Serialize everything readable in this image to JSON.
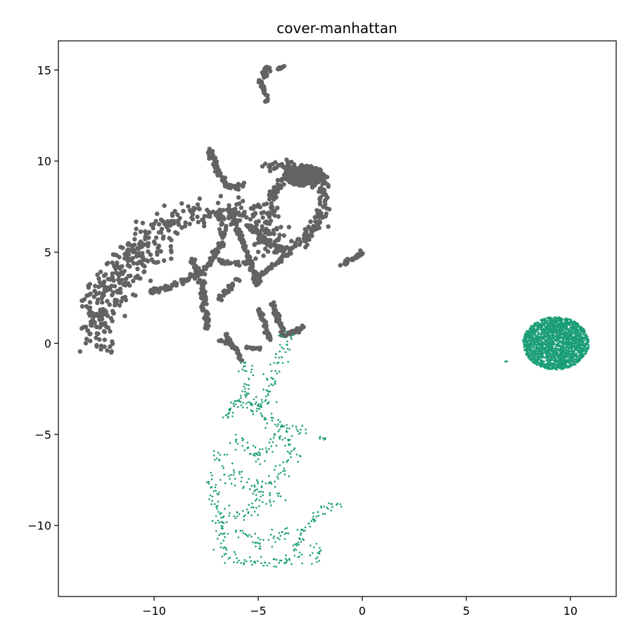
{
  "chart_data": {
    "type": "scatter",
    "title": "cover-manhattan",
    "xlabel": "",
    "ylabel": "",
    "xlim": [
      -14.6,
      12.2
    ],
    "ylim": [
      -13.9,
      16.6
    ],
    "xticks": [
      -10,
      -5,
      0,
      5,
      10
    ],
    "yticks": [
      -10,
      -5,
      0,
      5,
      10,
      15
    ],
    "xtick_labels": [
      "−10",
      "−5",
      "0",
      "5",
      "10"
    ],
    "ytick_labels": [
      "−10",
      "−5",
      "0",
      "5",
      "10",
      "15"
    ],
    "grid": false,
    "legend": "none",
    "series": [
      {
        "color": "#636363",
        "marker_size": "large",
        "clusters": [
          {
            "shape": "arc",
            "points": [
              [
                -12.3,
                -0.3
              ],
              [
                -12.9,
                0.8
              ],
              [
                -12.8,
                2.4
              ],
              [
                -12.2,
                3.8
              ],
              [
                -11.0,
                5.4
              ],
              [
                -9.6,
                6.3
              ],
              [
                -8.2,
                7.0
              ],
              [
                -6.6,
                7.4
              ],
              [
                -5.0,
                7.0
              ],
              [
                -4.2,
                6.0
              ],
              [
                -4.8,
                5.0
              ]
            ],
            "spread": 0.35
          },
          {
            "shape": "arc",
            "points": [
              [
                -12.6,
                0.9
              ],
              [
                -12.0,
                2.6
              ],
              [
                -11.2,
                3.6
              ],
              [
                -10.5,
                4.5
              ],
              [
                -9.6,
                5.5
              ]
            ],
            "spread": 0.45
          },
          {
            "shape": "blob",
            "center": [
              -2.8,
              9.2
            ],
            "radius": [
              1.0,
              0.55
            ],
            "count": 260
          },
          {
            "shape": "arc",
            "points": [
              [
                -4.6,
                9.8
              ],
              [
                -3.2,
                9.6
              ],
              [
                -2.0,
                9.0
              ],
              [
                -1.8,
                7.6
              ],
              [
                -2.3,
                6.3
              ],
              [
                -3.3,
                5.3
              ],
              [
                -4.2,
                5.1
              ]
            ],
            "spread": 0.18
          },
          {
            "shape": "arc",
            "points": [
              [
                -3.7,
                9.2
              ],
              [
                -4.3,
                8.0
              ],
              [
                -4.4,
                7.0
              ]
            ],
            "spread": 0.12
          },
          {
            "shape": "arc",
            "points": [
              [
                -7.3,
                10.6
              ],
              [
                -7.0,
                9.6
              ],
              [
                -6.6,
                8.8
              ],
              [
                -6.2,
                8.5
              ],
              [
                -5.7,
                8.8
              ]
            ],
            "spread": 0.08
          },
          {
            "shape": "arc",
            "points": [
              [
                -6.3,
                7.4
              ],
              [
                -6.0,
                6.3
              ],
              [
                -5.6,
                5.1
              ],
              [
                -5.2,
                4.0
              ],
              [
                -5.0,
                3.2
              ]
            ],
            "spread": 0.08
          },
          {
            "shape": "arc",
            "points": [
              [
                -10.2,
                2.8
              ],
              [
                -8.5,
                3.4
              ],
              [
                -7.4,
                4.2
              ],
              [
                -6.9,
                5.2
              ],
              [
                -6.7,
                6.2
              ],
              [
                -6.9,
                7.2
              ]
            ],
            "spread": 0.08
          },
          {
            "shape": "arc",
            "points": [
              [
                -8.2,
                4.6
              ],
              [
                -7.7,
                3.3
              ],
              [
                -7.6,
                2.0
              ],
              [
                -7.4,
                0.9
              ]
            ],
            "spread": 0.08
          },
          {
            "shape": "arc",
            "points": [
              [
                -6.9,
                2.4
              ],
              [
                -6.4,
                3.0
              ],
              [
                -6.0,
                3.5
              ]
            ],
            "spread": 0.06
          },
          {
            "shape": "arc",
            "points": [
              [
                -6.9,
                4.5
              ],
              [
                -6.0,
                4.4
              ],
              [
                -5.2,
                4.4
              ]
            ],
            "spread": 0.06
          },
          {
            "shape": "arc",
            "points": [
              [
                -5.1,
                3.6
              ],
              [
                -4.6,
                4.0
              ],
              [
                -3.9,
                4.6
              ],
              [
                -3.5,
                5.0
              ]
            ],
            "spread": 0.06
          },
          {
            "shape": "arc",
            "points": [
              [
                -5.7,
                6.6
              ],
              [
                -5.0,
                6.0
              ],
              [
                -4.5,
                5.4
              ],
              [
                -3.9,
                5.2
              ]
            ],
            "spread": 0.06
          },
          {
            "shape": "arc",
            "points": [
              [
                -4.3,
                2.2
              ],
              [
                -4.0,
                1.2
              ],
              [
                -3.7,
                0.4
              ],
              [
                -3.1,
                0.7
              ],
              [
                -2.8,
                0.9
              ]
            ],
            "spread": 0.06
          },
          {
            "shape": "arc",
            "points": [
              [
                -5.0,
                1.9
              ],
              [
                -4.7,
                1.0
              ],
              [
                -4.4,
                0.2
              ]
            ],
            "spread": 0.05
          },
          {
            "shape": "arc",
            "points": [
              [
                -6.6,
                0.6
              ],
              [
                -6.4,
                0.1
              ],
              [
                -6.0,
                -0.4
              ],
              [
                -5.8,
                -0.9
              ]
            ],
            "spread": 0.05
          },
          {
            "shape": "arc",
            "points": [
              [
                -6.8,
                0.1
              ],
              [
                -6.3,
                0.0
              ]
            ],
            "spread": 0.04
          },
          {
            "shape": "arc",
            "points": [
              [
                -5.6,
                -0.2
              ],
              [
                -4.9,
                -0.3
              ]
            ],
            "spread": 0.04
          },
          {
            "shape": "arc",
            "points": [
              [
                -1.0,
                4.3
              ],
              [
                -0.5,
                4.6
              ],
              [
                0.0,
                5.0
              ]
            ],
            "spread": 0.05
          },
          {
            "shape": "arc",
            "points": [
              [
                -5.0,
                14.3
              ],
              [
                -4.6,
                14.8
              ],
              [
                -4.6,
                15.3
              ]
            ],
            "spread": 0.1
          },
          {
            "shape": "arc",
            "points": [
              [
                -4.8,
                14.2
              ],
              [
                -4.6,
                13.6
              ],
              [
                -4.6,
                13.3
              ]
            ],
            "spread": 0.05
          },
          {
            "shape": "arc",
            "points": [
              [
                -4.1,
                15.0
              ],
              [
                -3.8,
                15.2
              ]
            ],
            "spread": 0.03
          }
        ]
      },
      {
        "color": "#1b9e77",
        "marker_size": "small",
        "clusters": [
          {
            "shape": "blob",
            "center": [
              9.3,
              0.0
            ],
            "radius": [
              1.6,
              1.45
            ],
            "count": 2600
          },
          {
            "shape": "arc",
            "points": [
              [
                6.9,
                -1.0
              ],
              [
                6.95,
                -1.02
              ]
            ],
            "spread": 0.02
          },
          {
            "shape": "arc",
            "points": [
              [
                -5.6,
                -1.0
              ],
              [
                -5.5,
                -2.2
              ],
              [
                -5.6,
                -3.1
              ],
              [
                -4.8,
                -3.5
              ],
              [
                -4.4,
                -2.3
              ],
              [
                -4.0,
                -0.8
              ],
              [
                -3.6,
                0.2
              ],
              [
                -3.2,
                0.5
              ]
            ],
            "spread": 0.18
          },
          {
            "shape": "arc",
            "points": [
              [
                -6.3,
                -3.6
              ],
              [
                -5.4,
                -3.3
              ],
              [
                -4.9,
                -3.9
              ],
              [
                -4.3,
                -4.1
              ],
              [
                -3.7,
                -4.8
              ],
              [
                -3.2,
                -4.6
              ],
              [
                -2.6,
                -5.0
              ]
            ],
            "spread": 0.22
          },
          {
            "shape": "arc",
            "points": [
              [
                -6.4,
                -5.2
              ],
              [
                -5.5,
                -5.6
              ],
              [
                -5.0,
                -6.3
              ],
              [
                -4.5,
                -5.4
              ],
              [
                -4.0,
                -5.0
              ],
              [
                -3.5,
                -5.6
              ],
              [
                -3.3,
                -6.3
              ]
            ],
            "spread": 0.22
          },
          {
            "shape": "arc",
            "points": [
              [
                -7.2,
                -6.2
              ],
              [
                -6.5,
                -6.7
              ],
              [
                -6.0,
                -7.5
              ],
              [
                -5.3,
                -7.8
              ],
              [
                -4.5,
                -7.8
              ],
              [
                -3.9,
                -7.1
              ],
              [
                -3.5,
                -6.4
              ]
            ],
            "spread": 0.22
          },
          {
            "shape": "arc",
            "points": [
              [
                -7.3,
                -7.2
              ],
              [
                -7.1,
                -8.5
              ],
              [
                -6.6,
                -9.3
              ],
              [
                -5.8,
                -9.5
              ],
              [
                -5.0,
                -8.9
              ],
              [
                -4.7,
                -8.2
              ],
              [
                -4.0,
                -8.8
              ]
            ],
            "spread": 0.22
          },
          {
            "shape": "arc",
            "points": [
              [
                -6.9,
                -9.2
              ],
              [
                -6.8,
                -10.5
              ],
              [
                -6.7,
                -11.4
              ],
              [
                -6.1,
                -11.8
              ],
              [
                -5.3,
                -12.0
              ],
              [
                -4.4,
                -12.0
              ],
              [
                -3.6,
                -11.9
              ],
              [
                -2.8,
                -11.6
              ]
            ],
            "spread": 0.18
          },
          {
            "shape": "arc",
            "points": [
              [
                -5.9,
                -10.2
              ],
              [
                -5.2,
                -10.9
              ],
              [
                -4.6,
                -11.0
              ],
              [
                -4.0,
                -10.6
              ],
              [
                -3.4,
                -10.1
              ]
            ],
            "spread": 0.18
          },
          {
            "shape": "arc",
            "points": [
              [
                -3.2,
                -11.4
              ],
              [
                -2.8,
                -10.3
              ],
              [
                -2.3,
                -9.6
              ],
              [
                -1.7,
                -8.9
              ],
              [
                -1.0,
                -8.8
              ]
            ],
            "spread": 0.1
          },
          {
            "shape": "arc",
            "points": [
              [
                -2.4,
                -11.0
              ],
              [
                -2.1,
                -11.6
              ],
              [
                -2.2,
                -12.0
              ]
            ],
            "spread": 0.1
          },
          {
            "shape": "arc",
            "points": [
              [
                -2.1,
                -5.1
              ],
              [
                -1.6,
                -5.3
              ]
            ],
            "spread": 0.04
          },
          {
            "shape": "arc",
            "points": [
              [
                -5.9,
                -2.9
              ],
              [
                -6.4,
                -3.8
              ],
              [
                -6.7,
                -4.2
              ]
            ],
            "spread": 0.08
          }
        ]
      }
    ]
  }
}
